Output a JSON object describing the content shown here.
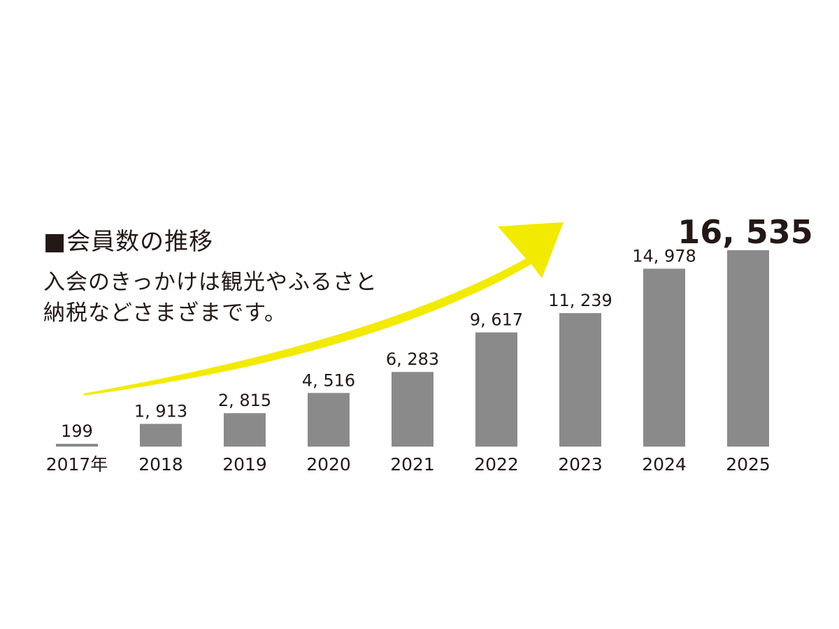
{
  "title": "■会員数の推移",
  "subtitle": {
    "line1": "入会のきっかけは観光やふるさと",
    "line2": "納税などさまざまです。"
  },
  "colors": {
    "bar": "#8b8a8b",
    "arrow": "#f2ea00",
    "text": "#231815"
  },
  "chart_data": {
    "type": "bar",
    "title": "■会員数の推移",
    "categories": [
      "2017年",
      "2018",
      "2019",
      "2020",
      "2021",
      "2022",
      "2023",
      "2024",
      "2025"
    ],
    "values": [
      199,
      1913,
      2815,
      4516,
      6283,
      9617,
      11239,
      14978,
      16535
    ],
    "value_labels": [
      "199",
      "1, 913",
      "2, 815",
      "4, 516",
      "6, 283",
      "9, 617",
      "11, 239",
      "14, 978",
      "16, 535"
    ],
    "highlight_index": 8,
    "ylim": [
      0,
      16535
    ],
    "xlabel": "",
    "ylabel": "",
    "grid": false,
    "legend": "none",
    "decoration": "yellow-upward-trend-arrow"
  }
}
